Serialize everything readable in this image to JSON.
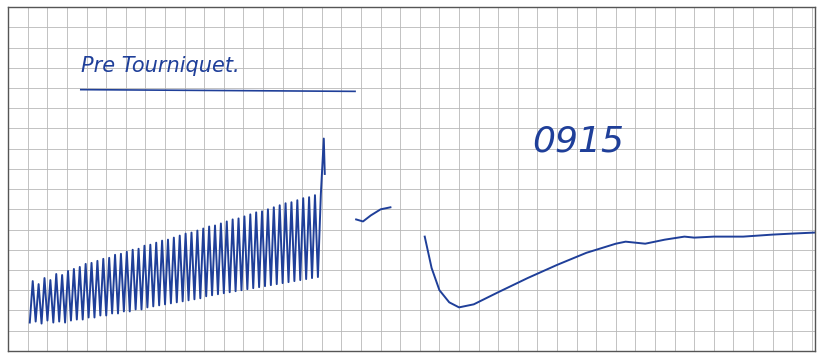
{
  "chart_data": {
    "type": "line",
    "annotations": [
      "Pre Tourniquet.",
      "0915"
    ],
    "x": [
      22,
      25,
      28,
      31,
      34,
      37,
      40,
      43,
      46,
      49,
      52,
      55,
      58,
      61,
      64,
      67,
      70,
      73,
      76,
      79,
      82,
      85,
      88,
      91,
      94,
      97,
      100,
      103,
      106,
      109,
      112,
      115,
      118,
      121,
      124,
      127,
      130,
      133,
      136,
      139,
      142,
      145,
      148,
      151,
      154,
      157,
      160,
      163,
      166,
      169,
      172,
      175,
      178,
      181,
      184,
      187,
      190,
      193,
      196,
      199,
      202,
      205,
      208,
      211,
      214,
      217,
      220,
      223,
      226,
      229,
      232,
      235,
      238,
      241,
      244,
      247,
      250,
      253,
      256,
      259,
      262,
      265,
      268,
      271,
      274,
      277,
      280,
      283,
      286,
      289,
      292,
      295,
      298,
      301,
      304,
      307,
      310,
      313,
      316,
      319,
      322,
      323,
      330,
      355,
      362,
      370,
      380,
      390,
      400,
      425,
      432,
      440,
      450,
      460,
      475,
      500,
      530,
      560,
      590,
      610,
      620,
      630,
      650,
      670,
      690,
      700,
      720,
      750,
      780,
      800,
      823
    ],
    "values": [
      28,
      69,
      29,
      66,
      27,
      72,
      30,
      70,
      28,
      76,
      29,
      75,
      28,
      79,
      30,
      81,
      31,
      83,
      31,
      86,
      33,
      87,
      33,
      89,
      35,
      91,
      35,
      92,
      37,
      95,
      37,
      96,
      39,
      98,
      39,
      100,
      41,
      101,
      41,
      104,
      43,
      105,
      44,
      107,
      45,
      109,
      46,
      110,
      47,
      112,
      48,
      114,
      49,
      116,
      50,
      117,
      51,
      119,
      52,
      121,
      54,
      123,
      55,
      124,
      56,
      126,
      57,
      128,
      58,
      130,
      59,
      131,
      60,
      133,
      61,
      135,
      62,
      137,
      63,
      138,
      64,
      140,
      65,
      142,
      66,
      144,
      67,
      146,
      68,
      147,
      69,
      149,
      70,
      151,
      71,
      152,
      72,
      154,
      73,
      155,
      210,
      175,
      null,
      130,
      128,
      134,
      140,
      142,
      null,
      113,
      82,
      60,
      48,
      43,
      46,
      58,
      72,
      85,
      97,
      103,
      106,
      108,
      106,
      110,
      113,
      112,
      113,
      113,
      115,
      116,
      117
    ],
    "color": "#1f3f99",
    "xlim": [
      0,
      823
    ],
    "ylim": [
      0,
      340
    ],
    "xticks": [
      0,
      20,
      40,
      60,
      80,
      100,
      120,
      140,
      160,
      180,
      200,
      220,
      240,
      260,
      280,
      300,
      320,
      340,
      360,
      380,
      400,
      420,
      440,
      460,
      480,
      500,
      520,
      540,
      560,
      580,
      600,
      620,
      640,
      660,
      680,
      700,
      720,
      740,
      760,
      780,
      800,
      820
    ],
    "yticks": [
      0,
      20,
      40,
      60,
      80,
      100,
      120,
      140,
      160,
      180,
      200,
      220,
      240,
      260,
      280,
      300,
      320,
      340
    ],
    "grid": true,
    "tick_labels": false
  }
}
